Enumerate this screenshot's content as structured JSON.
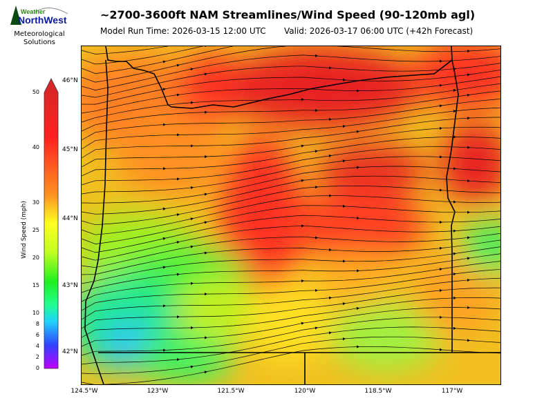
{
  "header": {
    "title": "~2700-3600ft NAM Streamlines/Wind Speed (90-120mb agl)",
    "model_run": "Model Run Time: 2026-03-15 12:00 UTC",
    "valid": "Valid: 2026-03-17 06:00 UTC  (+42h Forecast)"
  },
  "logo": {
    "line1": "Weather",
    "line2": "NorthWest",
    "subtitle_1": "Meteorological",
    "subtitle_2": "Solutions"
  },
  "colorbar": {
    "label": "Wind Speed (mph)",
    "ticks": [
      "50",
      "40",
      "30",
      "25",
      "20",
      "15",
      "10",
      "8",
      "6",
      "4",
      "2",
      "0"
    ],
    "colors": [
      "#c000ff",
      "#3040ff",
      "#20d0ff",
      "#20ff80",
      "#20ff20",
      "#c0ff20",
      "#ffff20",
      "#ff9020",
      "#ff2020",
      "#d02828"
    ]
  },
  "map": {
    "lat_labels": [
      "46°N",
      "45°N",
      "44°N",
      "43°N",
      "42°N"
    ],
    "lon_labels": [
      "124.5°W",
      "123°W",
      "121.5°W",
      "120°W",
      "118.5°W",
      "117°W"
    ]
  }
}
